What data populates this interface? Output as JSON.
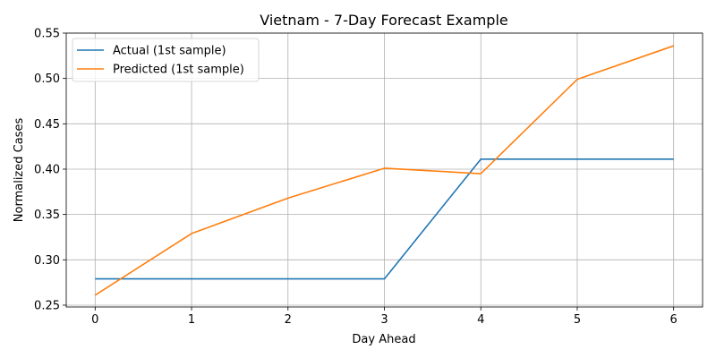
{
  "chart_data": {
    "type": "line",
    "title": "Vietnam - 7-Day Forecast Example",
    "xlabel": "Day Ahead",
    "ylabel": "Normalized Cases",
    "x": [
      0,
      1,
      2,
      3,
      4,
      5,
      6
    ],
    "xlim": [
      -0.3,
      6.3
    ],
    "ylim": [
      0.248,
      0.55
    ],
    "yticks": [
      0.25,
      0.3,
      0.35,
      0.4,
      0.45,
      0.5,
      0.55
    ],
    "ytick_labels": [
      "0.25",
      "0.30",
      "0.35",
      "0.40",
      "0.45",
      "0.50",
      "0.55"
    ],
    "xtick_labels": [
      "0",
      "1",
      "2",
      "3",
      "4",
      "5",
      "6"
    ],
    "grid": true,
    "legend_position": "top-left",
    "series": [
      {
        "name": "Actual (1st sample)",
        "color": "#1f77b4",
        "values": [
          0.279,
          0.279,
          0.279,
          0.279,
          0.411,
          0.411,
          0.411
        ]
      },
      {
        "name": "Predicted (1st sample)",
        "color": "#ff7f0e",
        "values": [
          0.261,
          0.329,
          0.368,
          0.401,
          0.395,
          0.499,
          0.536
        ]
      }
    ]
  }
}
